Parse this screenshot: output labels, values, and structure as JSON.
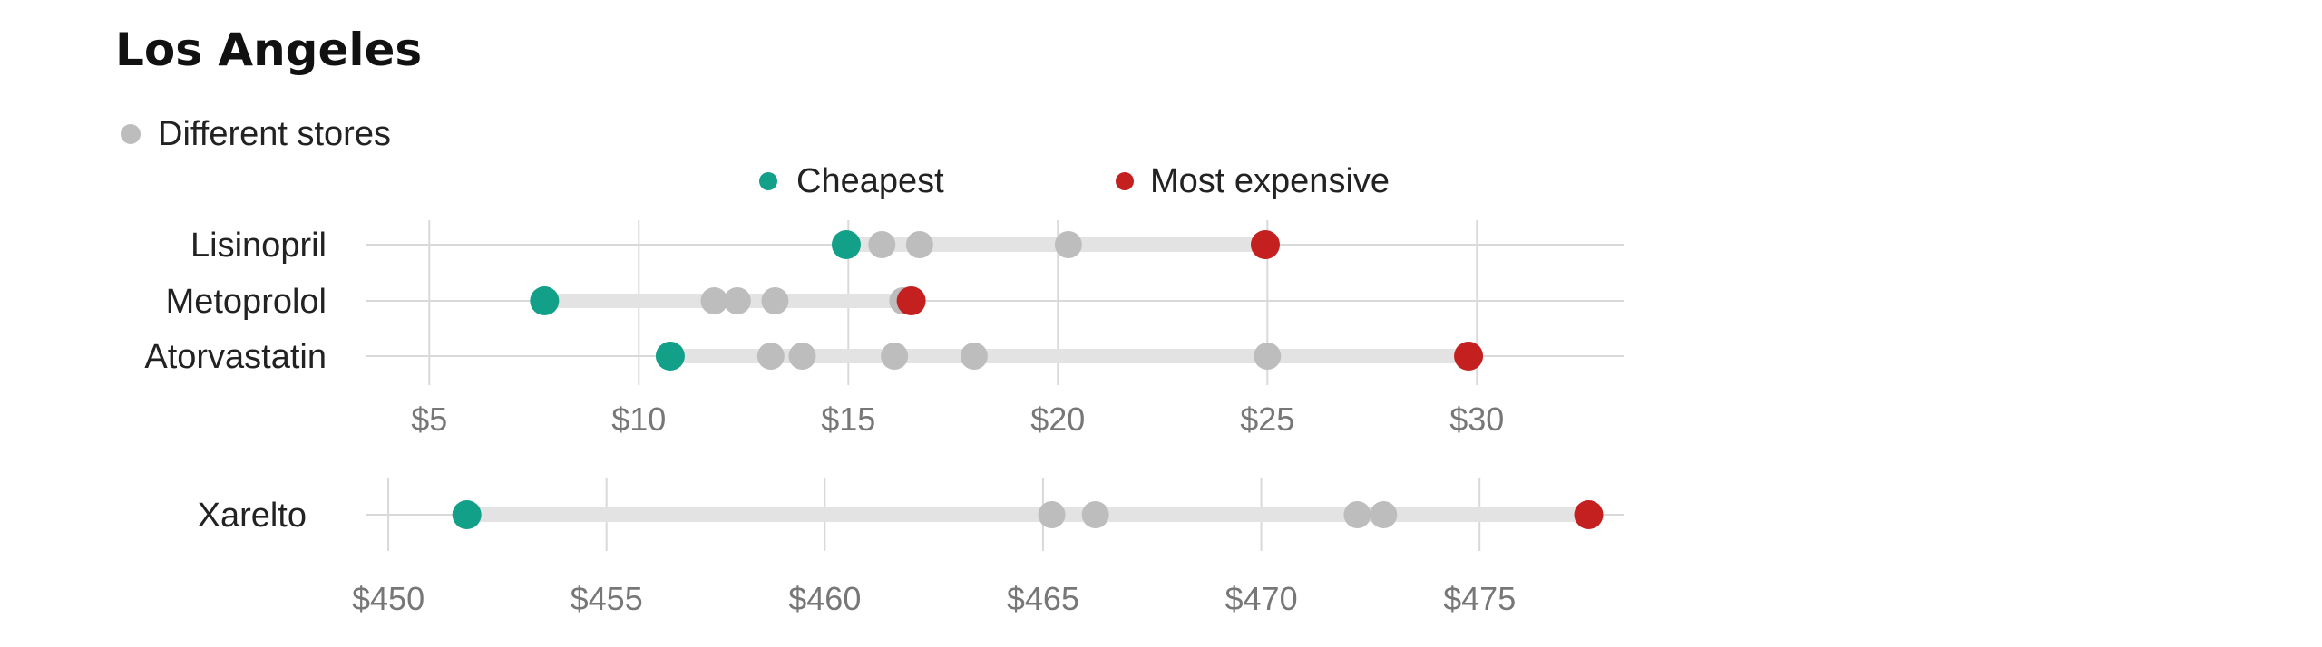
{
  "title": "Los Angeles",
  "legend": {
    "different": "Different stores",
    "cheapest": "Cheapest",
    "expensive": "Most expensive"
  },
  "colors": {
    "cheapest": "#12a088",
    "expensive": "#c42020",
    "store": "#bdbdbd",
    "range_band": "#e3e3e3",
    "grid": "#d9d9d9"
  },
  "chart_data": [
    {
      "type": "scatter",
      "title": "",
      "x_unit": "$",
      "xlim": [
        3.5,
        33.5
      ],
      "x_ticks": [
        5,
        10,
        15,
        20,
        25,
        30
      ],
      "x_tick_labels": [
        "$5",
        "$10",
        "$15",
        "$20",
        "$25",
        "$30"
      ],
      "categories": [
        "Lisinopril",
        "Metoprolol",
        "Atorvastatin"
      ],
      "rows": [
        {
          "name": "Lisinopril",
          "cheapest": 14.95,
          "most_expensive": 24.95,
          "stores": [
            15.8,
            16.7,
            20.25
          ]
        },
        {
          "name": "Metoprolol",
          "cheapest": 7.75,
          "most_expensive": 16.5,
          "stores": [
            11.8,
            12.35,
            13.25,
            16.3
          ]
        },
        {
          "name": "Atorvastatin",
          "cheapest": 10.75,
          "most_expensive": 29.8,
          "stores": [
            13.15,
            13.9,
            16.1,
            18.0,
            25.0
          ]
        }
      ]
    },
    {
      "type": "scatter",
      "title": "",
      "x_unit": "$",
      "xlim": [
        449.5,
        478.3
      ],
      "x_ticks": [
        450,
        455,
        460,
        465,
        470,
        475
      ],
      "x_tick_labels": [
        "$450",
        "$455",
        "$460",
        "$465",
        "$470",
        "$475"
      ],
      "categories": [
        "Xarelto"
      ],
      "rows": [
        {
          "name": "Xarelto",
          "cheapest": 451.8,
          "most_expensive": 477.5,
          "stores": [
            465.2,
            466.2,
            472.2,
            472.8
          ]
        }
      ]
    }
  ]
}
